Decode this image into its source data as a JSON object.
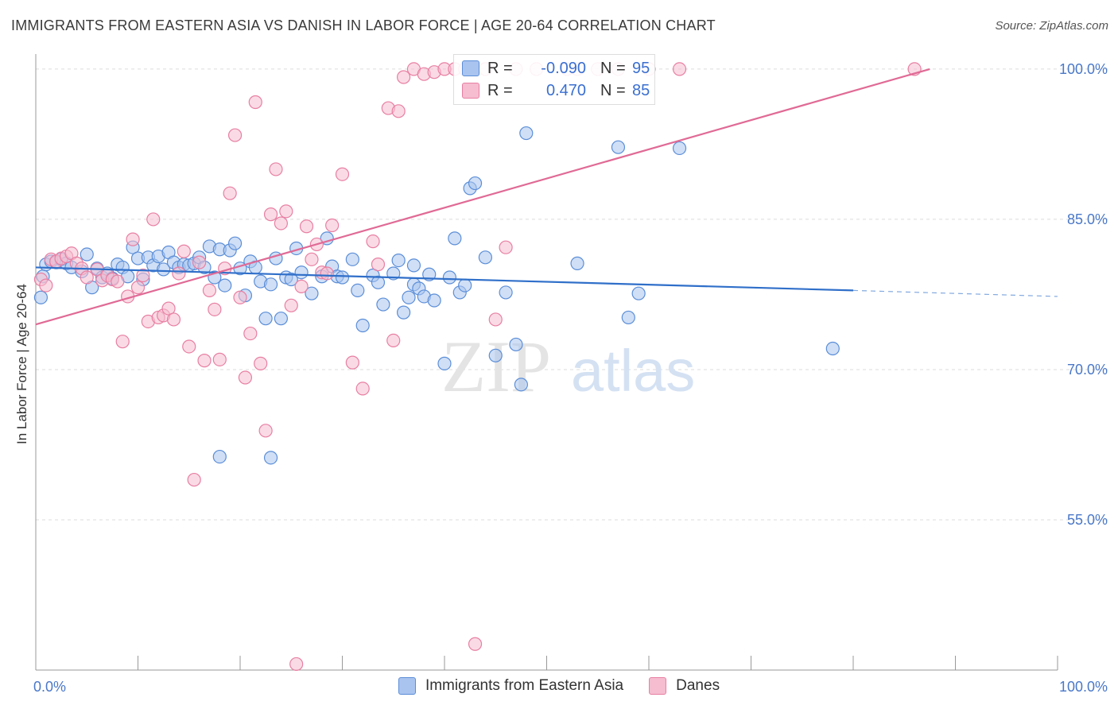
{
  "header": {
    "title": "IMMIGRANTS FROM EASTERN ASIA VS DANISH IN LABOR FORCE | AGE 20-64 CORRELATION CHART",
    "source": "Source: ZipAtlas.com"
  },
  "watermark": {
    "zip": "ZIP",
    "atlas": "atlas"
  },
  "legend": {
    "rows": [
      {
        "r_label": "R =",
        "r_value": "-0.090",
        "n_label": "N =",
        "n_value": "95"
      },
      {
        "r_label": "R =",
        "r_value": "0.470",
        "n_label": "N =",
        "n_value": "85"
      }
    ]
  },
  "bottom_legend": {
    "series1": "Immigrants from Eastern Asia",
    "series2": "Danes"
  },
  "colors": {
    "blue_fill": "#a9c4ef",
    "blue_stroke": "#5b8ed8",
    "blue_line": "#2f6fc9",
    "pink_fill": "#f6bdd0",
    "pink_stroke": "#e87fa3",
    "pink_line": "#e06a95",
    "axis_text": "#4a78c8"
  },
  "chart_data": {
    "type": "scatter",
    "title": "IMMIGRANTS FROM EASTERN ASIA VS DANISH IN LABOR FORCE | AGE 20-64 CORRELATION CHART",
    "xlabel": "",
    "ylabel": "In Labor Force | Age 20-64",
    "xlim": [
      0,
      100
    ],
    "ylim": [
      40,
      101.5
    ],
    "x_tick_labels": [
      "0.0%",
      "100.0%"
    ],
    "y_ticks": [
      55,
      70,
      85,
      100
    ],
    "y_tick_labels": [
      "55.0%",
      "70.0%",
      "85.0%",
      "100.0%"
    ],
    "series": [
      {
        "name": "Immigrants from Eastern Asia",
        "r": -0.09,
        "n": 95,
        "trend": {
          "x0": 0,
          "y0": 80.2,
          "x1": 80,
          "y1": 77.9,
          "dash_to_x": 100,
          "dash_to_y": 77.3
        },
        "points": [
          [
            0.5,
            77.2
          ],
          [
            0.7,
            79.3
          ],
          [
            1,
            80.5
          ],
          [
            1.5,
            80.8
          ],
          [
            2,
            80.7
          ],
          [
            2.5,
            81
          ],
          [
            3,
            80.6
          ],
          [
            3.5,
            80.2
          ],
          [
            4.5,
            79.8
          ],
          [
            5,
            81.5
          ],
          [
            5.5,
            78.2
          ],
          [
            6,
            80.1
          ],
          [
            6.5,
            79.2
          ],
          [
            7,
            79.6
          ],
          [
            7.5,
            79.1
          ],
          [
            8,
            80.5
          ],
          [
            8.5,
            80.2
          ],
          [
            9,
            79.3
          ],
          [
            9.5,
            82.2
          ],
          [
            10,
            81.1
          ],
          [
            10.5,
            79.0
          ],
          [
            11,
            81.2
          ],
          [
            11.5,
            80.4
          ],
          [
            12,
            81.3
          ],
          [
            12.5,
            80.0
          ],
          [
            13,
            81.7
          ],
          [
            13.5,
            80.7
          ],
          [
            14,
            80.2
          ],
          [
            14.5,
            80.5
          ],
          [
            15,
            80.4
          ],
          [
            15.5,
            80.6
          ],
          [
            16,
            81.2
          ],
          [
            16.5,
            80.2
          ],
          [
            17,
            82.3
          ],
          [
            17.5,
            79.2
          ],
          [
            18,
            82.0
          ],
          [
            18.5,
            78.4
          ],
          [
            19,
            81.9
          ],
          [
            19.5,
            82.6
          ],
          [
            20,
            80.1
          ],
          [
            20.5,
            77.4
          ],
          [
            21,
            80.8
          ],
          [
            21.5,
            80.2
          ],
          [
            22,
            78.8
          ],
          [
            22.5,
            75.1
          ],
          [
            23,
            78.5
          ],
          [
            23.5,
            81.1
          ],
          [
            24,
            75.1
          ],
          [
            24.5,
            79.2
          ],
          [
            25,
            79.0
          ],
          [
            25.5,
            82.1
          ],
          [
            26,
            79.7
          ],
          [
            27,
            77.6
          ],
          [
            28,
            79.3
          ],
          [
            28.5,
            83.1
          ],
          [
            29,
            80.3
          ],
          [
            29.5,
            79.3
          ],
          [
            30,
            79.2
          ],
          [
            31,
            81.0
          ],
          [
            31.5,
            77.9
          ],
          [
            32,
            74.4
          ],
          [
            33,
            79.4
          ],
          [
            33.5,
            78.7
          ],
          [
            34,
            76.5
          ],
          [
            35,
            79.6
          ],
          [
            35.5,
            80.9
          ],
          [
            36,
            75.7
          ],
          [
            36.5,
            77.2
          ],
          [
            37,
            78.5
          ],
          [
            37.5,
            78.1
          ],
          [
            38,
            77.3
          ],
          [
            38.5,
            79.5
          ],
          [
            39,
            76.9
          ],
          [
            40,
            70.6
          ],
          [
            41,
            83.1
          ],
          [
            41.5,
            77.7
          ],
          [
            42,
            78.4
          ],
          [
            42.5,
            88.1
          ],
          [
            43,
            88.6
          ],
          [
            44,
            81.2
          ],
          [
            45,
            71.4
          ],
          [
            46,
            77.7
          ],
          [
            47,
            72.5
          ],
          [
            47.5,
            68.5
          ],
          [
            48,
            93.6
          ],
          [
            53,
            80.6
          ],
          [
            57,
            92.2
          ],
          [
            58,
            75.2
          ],
          [
            59,
            77.6
          ],
          [
            63,
            92.1
          ],
          [
            78,
            72.1
          ],
          [
            18,
            61.3
          ],
          [
            23,
            61.2
          ],
          [
            37,
            80.4
          ],
          [
            40.5,
            79.2
          ]
        ]
      },
      {
        "name": "Danes",
        "r": 0.47,
        "n": 85,
        "trend": {
          "x0": 0,
          "y0": 74.5,
          "x1": 87.5,
          "y1": 100.0
        },
        "points": [
          [
            0.5,
            79.0
          ],
          [
            1,
            78.4
          ],
          [
            1.5,
            81.0
          ],
          [
            2,
            80.8
          ],
          [
            2.5,
            81.1
          ],
          [
            3,
            81.3
          ],
          [
            3.5,
            81.6
          ],
          [
            4,
            80.6
          ],
          [
            4.5,
            80.1
          ],
          [
            5,
            79.2
          ],
          [
            6,
            80.0
          ],
          [
            6.5,
            78.9
          ],
          [
            7,
            79.4
          ],
          [
            7.5,
            79.0
          ],
          [
            8,
            78.8
          ],
          [
            8.5,
            72.8
          ],
          [
            9,
            77.3
          ],
          [
            9.5,
            83.0
          ],
          [
            10,
            78.2
          ],
          [
            10.5,
            79.4
          ],
          [
            11,
            74.8
          ],
          [
            11.5,
            85.0
          ],
          [
            12,
            75.2
          ],
          [
            12.5,
            75.4
          ],
          [
            13,
            76.1
          ],
          [
            13.5,
            75.0
          ],
          [
            14,
            79.6
          ],
          [
            14.5,
            81.8
          ],
          [
            15,
            72.3
          ],
          [
            15.5,
            59.0
          ],
          [
            16,
            80.7
          ],
          [
            16.5,
            70.9
          ],
          [
            17,
            77.9
          ],
          [
            17.5,
            76.0
          ],
          [
            18,
            71.0
          ],
          [
            18.5,
            80.1
          ],
          [
            19,
            87.6
          ],
          [
            19.5,
            93.4
          ],
          [
            20,
            77.2
          ],
          [
            20.5,
            69.2
          ],
          [
            21,
            73.6
          ],
          [
            21.5,
            96.7
          ],
          [
            22,
            70.6
          ],
          [
            22.5,
            63.9
          ],
          [
            23,
            85.5
          ],
          [
            23.5,
            90.0
          ],
          [
            24,
            84.6
          ],
          [
            24.5,
            85.8
          ],
          [
            25,
            76.4
          ],
          [
            25.5,
            40.6
          ],
          [
            26,
            78.3
          ],
          [
            26.5,
            84.3
          ],
          [
            27,
            81.0
          ],
          [
            27.5,
            82.5
          ],
          [
            28,
            79.7
          ],
          [
            28.5,
            79.6
          ],
          [
            29,
            84.4
          ],
          [
            30,
            89.5
          ],
          [
            31,
            70.7
          ],
          [
            32,
            68.1
          ],
          [
            33,
            82.8
          ],
          [
            33.5,
            80.5
          ],
          [
            34.5,
            96.1
          ],
          [
            35,
            72.9
          ],
          [
            35.5,
            95.8
          ],
          [
            36,
            99.2
          ],
          [
            37,
            100.0
          ],
          [
            38,
            99.5
          ],
          [
            39,
            99.7
          ],
          [
            40,
            100.0
          ],
          [
            41,
            100.0
          ],
          [
            42,
            100.0
          ],
          [
            43,
            42.6
          ],
          [
            44,
            100.0
          ],
          [
            45,
            75.0
          ],
          [
            46,
            82.2
          ],
          [
            47,
            100.0
          ],
          [
            49,
            100.0
          ],
          [
            52,
            100.0
          ],
          [
            53,
            100.0
          ],
          [
            55,
            100.0
          ],
          [
            57,
            100.0
          ],
          [
            60,
            100.0
          ],
          [
            63,
            100.0
          ],
          [
            86,
            100.0
          ]
        ]
      }
    ]
  }
}
